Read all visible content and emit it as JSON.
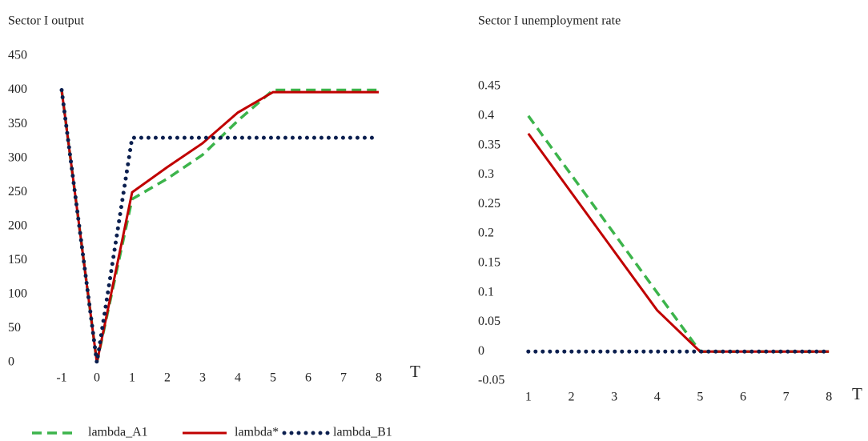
{
  "chart_data": [
    {
      "type": "line",
      "title": "Sector I output",
      "x_label": "T",
      "x": [
        -1,
        0,
        1,
        2,
        3,
        4,
        5,
        6,
        7,
        8
      ],
      "xlim": [
        -1.5,
        8.5
      ],
      "xticks": [
        -1,
        0,
        1,
        2,
        3,
        4,
        5,
        6,
        7,
        8
      ],
      "ylim": [
        0,
        450
      ],
      "yticks": [
        0,
        50,
        100,
        150,
        200,
        250,
        300,
        350,
        400,
        450
      ],
      "series": [
        {
          "name": "lambda_A1",
          "color": "#3cb44b",
          "style": "dashed",
          "values": [
            400,
            0,
            240,
            270,
            305,
            355,
            400,
            400,
            400,
            400
          ]
        },
        {
          "name": "lambda*",
          "color": "#c00000",
          "style": "solid",
          "values": [
            400,
            0,
            250,
            287,
            322,
            367,
            397,
            397,
            397,
            397
          ]
        },
        {
          "name": "lambda_B1",
          "color": "#0b1f4f",
          "style": "dotted",
          "values": [
            400,
            0,
            330,
            330,
            330,
            330,
            330,
            330,
            330,
            330
          ]
        }
      ]
    },
    {
      "type": "line",
      "title": "Sector I unemployment rate",
      "x_label": "T",
      "x": [
        1,
        2,
        3,
        4,
        5,
        6,
        7,
        8
      ],
      "xlim": [
        0.5,
        8.5
      ],
      "xticks": [
        1,
        2,
        3,
        4,
        5,
        6,
        7,
        8
      ],
      "ylim": [
        -0.05,
        0.45
      ],
      "yticks": [
        -0.05,
        0,
        0.05,
        0.1,
        0.15,
        0.2,
        0.25,
        0.3,
        0.35,
        0.4,
        0.45
      ],
      "series": [
        {
          "name": "lambda_A1",
          "color": "#3cb44b",
          "style": "dashed",
          "values": [
            0.4,
            0.3,
            0.2,
            0.1,
            0,
            0,
            0,
            0
          ]
        },
        {
          "name": "lambda*",
          "color": "#c00000",
          "style": "solid",
          "values": [
            0.37,
            0.27,
            0.17,
            0.07,
            0,
            0,
            0,
            0
          ]
        },
        {
          "name": "lambda_B1",
          "color": "#0b1f4f",
          "style": "dotted",
          "values": [
            0,
            0,
            0,
            0,
            0,
            0,
            0,
            0
          ]
        }
      ]
    }
  ]
}
